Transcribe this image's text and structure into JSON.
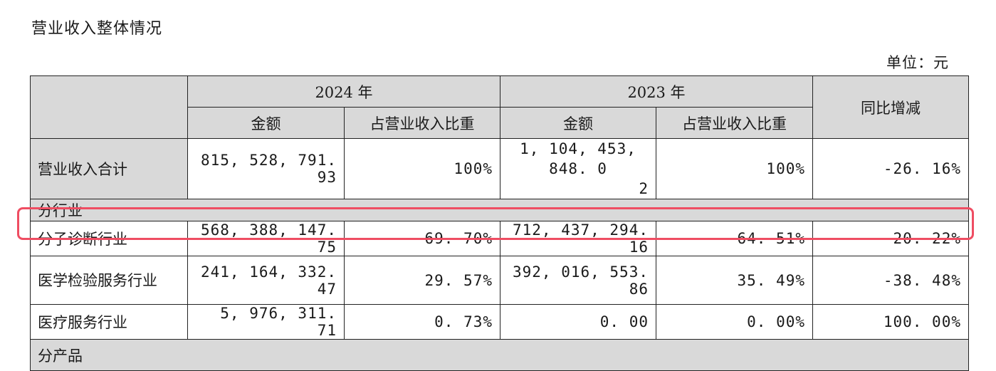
{
  "title": "营业收入整体情况",
  "unit": "单位：元",
  "header": {
    "year_2024": "2024 年",
    "year_2023": "2023 年",
    "yoy": "同比增减",
    "amount_2024": "金额",
    "share_2024": "占营业收入比重",
    "amount_2023": "金额",
    "share_2023": "占营业收入比重"
  },
  "total": {
    "label": "营业收入合计",
    "amount_2024": "815, 528, 791. 93",
    "share_2024": "100%",
    "amount_2023_line1": "1, 104, 453, 848. 0",
    "amount_2023_line2": "2",
    "share_2023": "100%",
    "yoy": "-26. 16%"
  },
  "section_industry": "分行业",
  "rows": [
    {
      "label": "分子诊断行业",
      "amount_2024": "568, 388, 147. 75",
      "share_2024": "69. 70%",
      "amount_2023": "712, 437, 294. 16",
      "share_2023": "64. 51%",
      "yoy": "-20. 22%"
    },
    {
      "label": "医学检验服务行业",
      "amount_2024": "241, 164, 332. 47",
      "share_2024": "29. 57%",
      "amount_2023": "392, 016, 553. 86",
      "share_2023": "35. 49%",
      "yoy": "-38. 48%"
    },
    {
      "label": "医疗服务行业",
      "amount_2024": "5, 976, 311. 71",
      "share_2024": "0. 73%",
      "amount_2023": "0. 00",
      "share_2023": "0. 00%",
      "yoy": "100. 00%"
    }
  ],
  "section_product": "分产品",
  "colors": {
    "header_bg": "#d9d9d9",
    "highlight": "#ef4d62"
  }
}
